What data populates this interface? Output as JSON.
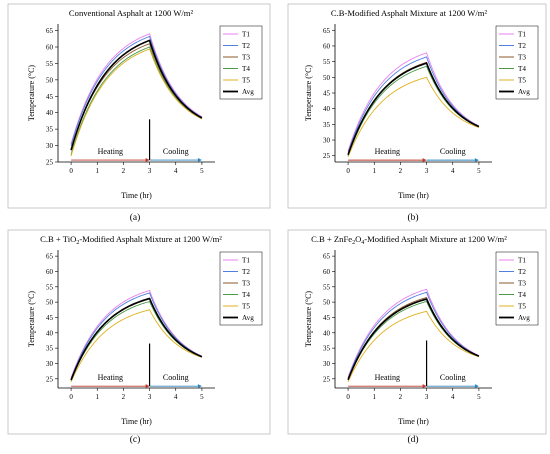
{
  "chart_data": [
    {
      "type": "line",
      "panel_label": "(a)",
      "title": "Conventional Asphalt at 1200 W/m²",
      "xlabel": "Time (hr)",
      "ylabel": "Temperature (°C)",
      "xlim": [
        -0.5,
        5.5
      ],
      "ylim": [
        25,
        67
      ],
      "xticks": [
        0,
        1,
        2,
        3,
        4,
        5
      ],
      "yticks": [
        25,
        30,
        35,
        40,
        45,
        50,
        55,
        60,
        65
      ],
      "phase_divider_x": 3,
      "phase_divider_top": 38,
      "heating_label": "Heating",
      "cooling_label": "Cooling",
      "legend_position": "top-right",
      "series": [
        {
          "name": "T1",
          "color": "#e880f0",
          "start": 30.5,
          "peak": 64.0,
          "end": 38.8
        },
        {
          "name": "T2",
          "color": "#4f7fe0",
          "start": 30.0,
          "peak": 63.2,
          "end": 38.6
        },
        {
          "name": "T3",
          "color": "#8b5a2b",
          "start": 28.8,
          "peak": 61.0,
          "end": 38.4
        },
        {
          "name": "T4",
          "color": "#4a9a4a",
          "start": 27.3,
          "peak": 60.0,
          "end": 38.2
        },
        {
          "name": "T5",
          "color": "#e0b020",
          "start": 26.8,
          "peak": 59.4,
          "end": 38.1
        },
        {
          "name": "Avg",
          "color": "#000000",
          "start": 28.6,
          "peak": 62.0,
          "end": 38.4
        }
      ]
    },
    {
      "type": "line",
      "panel_label": "(b)",
      "title": "C.B-Modified Asphalt Mixture at 1200 W/m²",
      "xlabel": "Time (hr)",
      "ylabel": "Temperature (°C)",
      "xlim": [
        -0.5,
        5.5
      ],
      "ylim": [
        23,
        67
      ],
      "xticks": [
        0,
        1,
        2,
        3,
        4,
        5
      ],
      "yticks": [
        25,
        30,
        35,
        40,
        45,
        50,
        55,
        60,
        65
      ],
      "phase_divider_x": null,
      "phase_divider_top": null,
      "heating_label": "Heating",
      "cooling_label": "Cooling",
      "legend_position": "top-right",
      "series": [
        {
          "name": "T1",
          "color": "#e880f0",
          "start": 26.5,
          "peak": 57.8,
          "end": 34.5
        },
        {
          "name": "T2",
          "color": "#4f7fe0",
          "start": 26.0,
          "peak": 56.5,
          "end": 34.4
        },
        {
          "name": "T3",
          "color": "#8b5a2b",
          "start": 25.2,
          "peak": 54.8,
          "end": 34.3
        },
        {
          "name": "T4",
          "color": "#4a9a4a",
          "start": 24.9,
          "peak": 53.5,
          "end": 34.2
        },
        {
          "name": "T5",
          "color": "#e0b020",
          "start": 24.6,
          "peak": 50.0,
          "end": 34.0
        },
        {
          "name": "Avg",
          "color": "#000000",
          "start": 25.3,
          "peak": 54.5,
          "end": 34.3
        }
      ]
    },
    {
      "type": "line",
      "panel_label": "(c)",
      "title_pre": "C.B + TiO",
      "title_sub": "2",
      "title_post": "-Modified Asphalt Mixture at 1200 W/m²",
      "xlabel": "Time (hr)",
      "ylabel": "Temperature (°C)",
      "xlim": [
        -0.5,
        5.5
      ],
      "ylim": [
        22,
        67
      ],
      "xticks": [
        0,
        1,
        2,
        3,
        4,
        5
      ],
      "yticks": [
        25,
        30,
        35,
        40,
        45,
        50,
        55,
        60,
        65
      ],
      "phase_divider_x": 3,
      "phase_divider_top": 36.5,
      "heating_label": "Heating",
      "cooling_label": "Cooling",
      "legend_position": "top-right",
      "series": [
        {
          "name": "T1",
          "color": "#e880f0",
          "start": 25.3,
          "peak": 53.8,
          "end": 32.4
        },
        {
          "name": "T2",
          "color": "#4f7fe0",
          "start": 25.0,
          "peak": 53.0,
          "end": 32.3
        },
        {
          "name": "T3",
          "color": "#8b5a2b",
          "start": 24.7,
          "peak": 51.0,
          "end": 32.2
        },
        {
          "name": "T4",
          "color": "#4a9a4a",
          "start": 24.4,
          "peak": 50.2,
          "end": 32.1
        },
        {
          "name": "T5",
          "color": "#e0b020",
          "start": 24.0,
          "peak": 47.5,
          "end": 32.0
        },
        {
          "name": "Avg",
          "color": "#000000",
          "start": 24.6,
          "peak": 51.2,
          "end": 32.2
        }
      ]
    },
    {
      "type": "line",
      "panel_label": "(d)",
      "title_pre": "C.B + ZnFe",
      "title_sub": "2",
      "title_mid": "O",
      "title_sub2": "4",
      "title_post": "-Modified Asphalt Mixture at 1200 W/m²",
      "xlabel": "Time (hr)",
      "ylabel": "Temperature (°C)",
      "xlim": [
        -0.5,
        5.5
      ],
      "ylim": [
        22,
        67
      ],
      "xticks": [
        0,
        1,
        2,
        3,
        4,
        5
      ],
      "yticks": [
        25,
        30,
        35,
        40,
        45,
        50,
        55,
        60,
        65
      ],
      "phase_divider_x": 3,
      "phase_divider_top": 37.5,
      "heating_label": "Heating",
      "cooling_label": "Cooling",
      "legend_position": "top-right",
      "series": [
        {
          "name": "T1",
          "color": "#e880f0",
          "start": 25.5,
          "peak": 54.2,
          "end": 32.6
        },
        {
          "name": "T2",
          "color": "#4f7fe0",
          "start": 25.2,
          "peak": 53.2,
          "end": 32.5
        },
        {
          "name": "T3",
          "color": "#8b5a2b",
          "start": 24.8,
          "peak": 51.5,
          "end": 32.4
        },
        {
          "name": "T4",
          "color": "#4a9a4a",
          "start": 24.5,
          "peak": 50.2,
          "end": 32.3
        },
        {
          "name": "T5",
          "color": "#e0b020",
          "start": 24.0,
          "peak": 47.0,
          "end": 32.2
        },
        {
          "name": "Avg",
          "color": "#000000",
          "start": 24.7,
          "peak": 51.0,
          "end": 32.4
        }
      ]
    }
  ]
}
